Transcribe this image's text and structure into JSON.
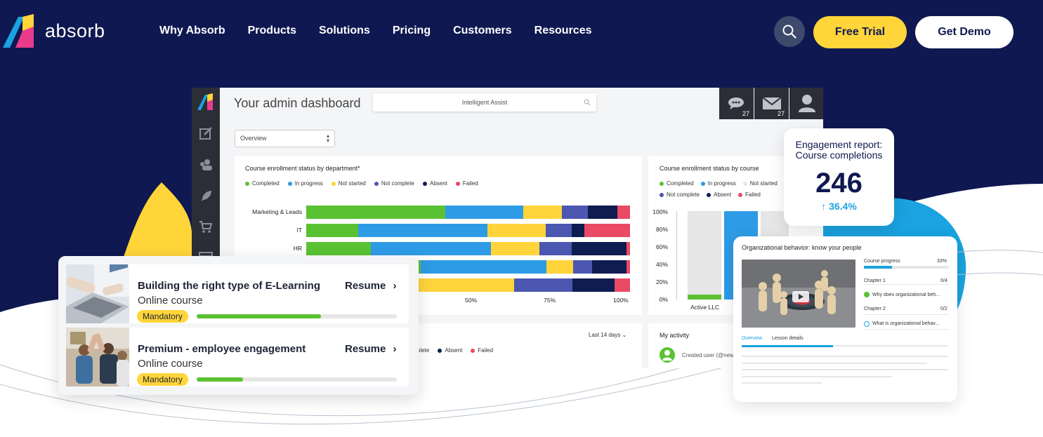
{
  "nav": {
    "logo_text": "absorb",
    "links": [
      "Why Absorb",
      "Products",
      "Solutions",
      "Pricing",
      "Customers",
      "Resources"
    ],
    "free_trial": "Free Trial",
    "get_demo": "Get Demo",
    "search_icon": "search-icon"
  },
  "colors": {
    "navy": "#0f1850",
    "yellow": "#ffd53a",
    "completed": "#5ac232",
    "in_progress": "#2e9be6",
    "not_started": "#ffd43b",
    "not_complete": "#4b57b0",
    "absent": "#0f1c4f",
    "failed": "#ea4a63"
  },
  "dashboard": {
    "title": "Your admin dashboard",
    "assist_placeholder": "Intelligent Assist",
    "messages_count": "27",
    "mail_count": "27",
    "select_value": "Overview",
    "dept_card_title": "Course enrollment status by department*",
    "course_card_title": "Course enrollment status by course",
    "legend": [
      "Completed",
      "In progress",
      "Not started",
      "Not complete",
      "Absent",
      "Failed"
    ],
    "course_legend_row2": [
      "Not complete",
      "Absent",
      "Failed"
    ],
    "period": "Last 14 days",
    "bottom_legend": [
      "plete",
      "Absent",
      "Failed"
    ],
    "activity_title": "My activity",
    "activity_text": "Created user (@new"
  },
  "chart_data": [
    {
      "type": "bar",
      "orientation": "horizontal-stacked",
      "title": "Course enrollment status by department*",
      "categories": [
        "Marketing & Leads",
        "IT",
        "HR",
        "",
        ""
      ],
      "series": [
        {
          "name": "Completed",
          "values": [
            43,
            16,
            20,
            12,
            0
          ]
        },
        {
          "name": "In progress",
          "values": [
            24,
            40,
            37,
            33,
            0
          ]
        },
        {
          "name": "Not started",
          "values": [
            12,
            18,
            15,
            7,
            36
          ]
        },
        {
          "name": "Not complete",
          "values": [
            8,
            8,
            10,
            5,
            15
          ]
        },
        {
          "name": "Absent",
          "values": [
            9,
            4,
            17,
            9,
            11
          ]
        },
        {
          "name": "Failed",
          "values": [
            4,
            14,
            1,
            1,
            4
          ]
        }
      ],
      "xticks": [
        "50%",
        "75%",
        "100%"
      ]
    },
    {
      "type": "bar",
      "orientation": "vertical-stacked",
      "title": "Course enrollment status by course",
      "categories": [
        "Active LLC"
      ],
      "yticks": [
        "100%",
        "80%",
        "60%",
        "40%",
        "20%",
        "0%"
      ],
      "series": [
        {
          "name": "Completed",
          "values": [
            6
          ]
        },
        {
          "name": "Not started",
          "values": [
            94
          ]
        }
      ]
    }
  ],
  "engagement": {
    "title_line1": "Engagement report:",
    "title_line2": "Course completions",
    "value": "246",
    "change": "↑ 36.4%"
  },
  "org": {
    "title": "Organizational behavior: know your people",
    "progress_label": "Course progress",
    "progress_value": "33%",
    "progress": 0.33,
    "chapter1": "Chapter 1",
    "chapter1_count": "0/4",
    "chapter1_item": "Why does organizational beh...",
    "chapter2": "Chapter 2",
    "chapter2_count": "0/2",
    "chapter2_item": "What is organizational behav...",
    "tab_overview": "Overview",
    "tab_details": "Lesson details"
  },
  "courses": [
    {
      "title": "Building the right type of E-Learning",
      "subtitle": "Online course",
      "action": "Resume",
      "badge": "Mandatory",
      "progress": 0.62
    },
    {
      "title": "Premium - employee engagement",
      "subtitle": "Online course",
      "action": "Resume",
      "badge": "Mandatory",
      "progress": 0.23
    }
  ]
}
